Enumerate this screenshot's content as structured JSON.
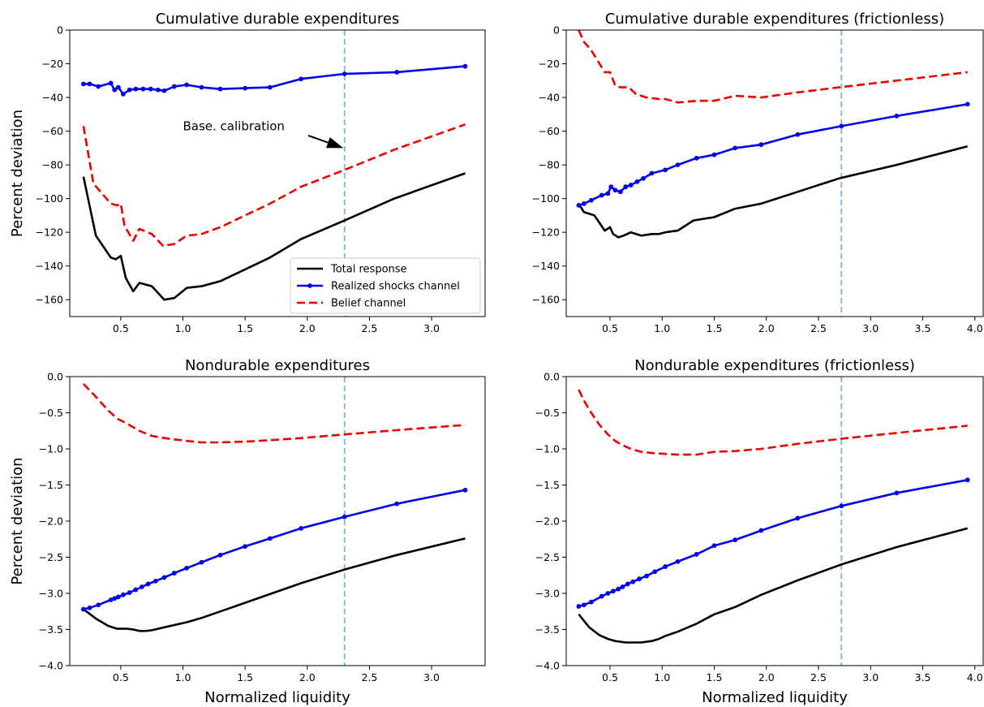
{
  "colors": {
    "total": "#000000",
    "realized": "#0000ee",
    "belief": "#ee0000",
    "calibration": "#8ab8d6"
  },
  "chart_data": [
    {
      "type": "line",
      "title": "Cumulative durable expenditures",
      "xlabel": "",
      "ylabel": "Percent deviation",
      "xlim": [
        0.09,
        3.43
      ],
      "ylim": [
        -170,
        0
      ],
      "xticks": [
        0.5,
        1.0,
        1.5,
        2.0,
        2.5,
        3.0
      ],
      "xtick_labels": [
        "0.5",
        "1.0",
        "1.5",
        "2.0",
        "2.5",
        "3.0"
      ],
      "yticks": [
        0,
        -20,
        -40,
        -60,
        -80,
        -100,
        -120,
        -140,
        -160
      ],
      "ytick_labels": [
        "0",
        "−20",
        "−40",
        "−60",
        "−80",
        "−100",
        "−120",
        "−140",
        "−160"
      ],
      "vline": 2.3,
      "legend": {
        "location": "lower-right",
        "entries": [
          "Total response",
          "Realized shocks channel",
          "Belief channel"
        ]
      },
      "annotation": {
        "text": "Base. calibration",
        "text_x": 1.0,
        "text_y": -57,
        "arrow_to_x": 2.29,
        "arrow_to_y": -70
      },
      "series": [
        {
          "key": "total",
          "style": "solid",
          "markers": false,
          "x": [
            0.2,
            0.3,
            0.42,
            0.46,
            0.5,
            0.54,
            0.6,
            0.65,
            0.75,
            0.85,
            0.93,
            1.03,
            1.15,
            1.3,
            1.5,
            1.7,
            1.95,
            2.3,
            2.7,
            3.27
          ],
          "y": [
            -87,
            -122,
            -135,
            -136,
            -134,
            -147,
            -155,
            -150,
            -152,
            -160,
            -159,
            -153,
            -152,
            -149,
            -142,
            -135,
            -124,
            -113,
            -100,
            -85
          ]
        },
        {
          "key": "realized",
          "style": "solid",
          "markers": true,
          "x": [
            0.2,
            0.25,
            0.32,
            0.42,
            0.45,
            0.48,
            0.52,
            0.57,
            0.62,
            0.68,
            0.74,
            0.8,
            0.85,
            0.93,
            1.03,
            1.15,
            1.3,
            1.5,
            1.7,
            1.95,
            2.3,
            2.72,
            3.27
          ],
          "y": [
            -32,
            -32,
            -33.5,
            -31.5,
            -35.5,
            -34,
            -38,
            -35.5,
            -35,
            -35,
            -35,
            -35.5,
            -36,
            -33.5,
            -32.5,
            -34,
            -35,
            -34.5,
            -34,
            -29,
            -26,
            -25,
            -21.5
          ]
        },
        {
          "key": "belief",
          "style": "dashed",
          "markers": false,
          "x": [
            0.2,
            0.28,
            0.42,
            0.47,
            0.5,
            0.53,
            0.6,
            0.65,
            0.75,
            0.84,
            0.93,
            1.03,
            1.15,
            1.3,
            1.5,
            1.7,
            1.95,
            2.3,
            2.7,
            3.27
          ],
          "y": [
            -57,
            -91,
            -103,
            -104,
            -103,
            -116,
            -125,
            -118,
            -121,
            -128,
            -127,
            -122,
            -121,
            -117,
            -110,
            -103,
            -93,
            -83,
            -71,
            -56
          ]
        }
      ]
    },
    {
      "type": "line",
      "title": "Cumulative durable expenditures (frictionless)",
      "xlabel": "",
      "ylabel": "",
      "xlim": [
        0.08,
        4.08
      ],
      "ylim": [
        -170,
        0
      ],
      "xticks": [
        0.5,
        1.0,
        1.5,
        2.0,
        2.5,
        3.0,
        3.5,
        4.0
      ],
      "xtick_labels": [
        "0.5",
        "1.0",
        "1.5",
        "2.0",
        "2.5",
        "3.0",
        "3.5",
        "4.0"
      ],
      "yticks": [
        0,
        -20,
        -40,
        -60,
        -80,
        -100,
        -120,
        -140,
        -160
      ],
      "ytick_labels": [
        "0",
        "−20",
        "−40",
        "−60",
        "−80",
        "−100",
        "−120",
        "−140",
        "−160"
      ],
      "vline": 2.72,
      "series": [
        {
          "key": "total",
          "style": "solid",
          "markers": false,
          "x": [
            0.2,
            0.25,
            0.35,
            0.45,
            0.5,
            0.53,
            0.58,
            0.63,
            0.7,
            0.8,
            0.9,
            0.97,
            1.03,
            1.15,
            1.3,
            1.5,
            1.7,
            1.95,
            2.3,
            2.7,
            3.25,
            3.93
          ],
          "y": [
            -103,
            -108,
            -110,
            -119,
            -117,
            -121,
            -123,
            -122,
            -120,
            -122,
            -121,
            -121,
            -120,
            -119,
            -113,
            -111,
            -106,
            -103,
            -96,
            -88,
            -80,
            -69
          ]
        },
        {
          "key": "realized",
          "style": "solid",
          "markers": true,
          "x": [
            0.2,
            0.25,
            0.32,
            0.42,
            0.48,
            0.51,
            0.55,
            0.6,
            0.65,
            0.7,
            0.76,
            0.82,
            0.9,
            1.03,
            1.15,
            1.33,
            1.5,
            1.7,
            1.95,
            2.3,
            2.72,
            3.25,
            3.93
          ],
          "y": [
            -104,
            -103,
            -101,
            -98,
            -97,
            -93,
            -95,
            -96,
            -93,
            -92,
            -90,
            -88,
            -85,
            -83,
            -80,
            -76,
            -74,
            -70,
            -68,
            -62,
            -57,
            -51,
            -44
          ]
        },
        {
          "key": "belief",
          "style": "dashed",
          "markers": false,
          "x": [
            0.2,
            0.25,
            0.32,
            0.38,
            0.45,
            0.5,
            0.55,
            0.6,
            0.68,
            0.75,
            0.85,
            0.97,
            1.03,
            1.15,
            1.33,
            1.5,
            1.7,
            1.95,
            2.3,
            2.7,
            3.25,
            3.93
          ],
          "y": [
            0,
            -7,
            -12,
            -18,
            -25,
            -25,
            -33,
            -34,
            -34,
            -38,
            -40,
            -41,
            -41,
            -43,
            -42,
            -42,
            -39,
            -40,
            -37,
            -34,
            -30,
            -25
          ]
        }
      ]
    },
    {
      "type": "line",
      "title": "Nondurable expenditures",
      "xlabel": "Normalized liquidity",
      "ylabel": "Percent deviation",
      "xlim": [
        0.09,
        3.43
      ],
      "ylim": [
        -4.0,
        0.0
      ],
      "xticks": [
        0.5,
        1.0,
        1.5,
        2.0,
        2.5,
        3.0
      ],
      "xtick_labels": [
        "0.5",
        "1.0",
        "1.5",
        "2.0",
        "2.5",
        "3.0"
      ],
      "yticks": [
        0.0,
        -0.5,
        -1.0,
        -1.5,
        -2.0,
        -2.5,
        -3.0,
        -3.5,
        -4.0
      ],
      "ytick_labels": [
        "0.0",
        "−0.5",
        "−1.0",
        "−1.5",
        "−2.0",
        "−2.5",
        "−3.0",
        "−3.5",
        "−4.0"
      ],
      "vline": 2.3,
      "series": [
        {
          "key": "total",
          "style": "solid",
          "markers": false,
          "x": [
            0.2,
            0.3,
            0.4,
            0.47,
            0.55,
            0.6,
            0.65,
            0.7,
            0.75,
            0.85,
            1.03,
            1.15,
            1.3,
            1.5,
            1.7,
            1.95,
            2.3,
            2.72,
            3.27
          ],
          "y": [
            -3.22,
            -3.35,
            -3.45,
            -3.49,
            -3.49,
            -3.5,
            -3.52,
            -3.52,
            -3.51,
            -3.47,
            -3.4,
            -3.34,
            -3.25,
            -3.13,
            -3.01,
            -2.86,
            -2.67,
            -2.47,
            -2.24
          ]
        },
        {
          "key": "realized",
          "style": "solid",
          "markers": true,
          "x": [
            0.2,
            0.25,
            0.32,
            0.42,
            0.45,
            0.48,
            0.52,
            0.57,
            0.62,
            0.67,
            0.72,
            0.78,
            0.85,
            0.93,
            1.03,
            1.15,
            1.3,
            1.5,
            1.7,
            1.95,
            2.3,
            2.72,
            3.27
          ],
          "y": [
            -3.22,
            -3.2,
            -3.16,
            -3.09,
            -3.07,
            -3.05,
            -3.02,
            -2.99,
            -2.95,
            -2.91,
            -2.87,
            -2.83,
            -2.78,
            -2.72,
            -2.65,
            -2.57,
            -2.47,
            -2.35,
            -2.24,
            -2.1,
            -1.94,
            -1.76,
            -1.57
          ]
        },
        {
          "key": "belief",
          "style": "dashed",
          "markers": false,
          "x": [
            0.2,
            0.3,
            0.4,
            0.47,
            0.55,
            0.65,
            0.75,
            0.85,
            1.03,
            1.15,
            1.3,
            1.5,
            1.7,
            1.95,
            2.3,
            2.72,
            3.27
          ],
          "y": [
            -0.1,
            -0.28,
            -0.47,
            -0.58,
            -0.65,
            -0.75,
            -0.82,
            -0.85,
            -0.89,
            -0.91,
            -0.91,
            -0.9,
            -0.88,
            -0.85,
            -0.8,
            -0.74,
            -0.67
          ]
        }
      ]
    },
    {
      "type": "line",
      "title": "Nondurable expenditures (frictionless)",
      "xlabel": "Normalized liquidity",
      "ylabel": "",
      "xlim": [
        0.08,
        4.08
      ],
      "ylim": [
        -4.0,
        0.0
      ],
      "xticks": [
        0.5,
        1.0,
        1.5,
        2.0,
        2.5,
        3.0,
        3.5,
        4.0
      ],
      "xtick_labels": [
        "0.5",
        "1.0",
        "1.5",
        "2.0",
        "2.5",
        "3.0",
        "3.5",
        "4.0"
      ],
      "yticks": [
        0.0,
        -0.5,
        -1.0,
        -1.5,
        -2.0,
        -2.5,
        -3.0,
        -3.5,
        -4.0
      ],
      "ytick_labels": [
        "0.0",
        "−0.5",
        "−1.0",
        "−1.5",
        "−2.0",
        "−2.5",
        "−3.0",
        "−3.5",
        "−4.0"
      ],
      "vline": 2.72,
      "series": [
        {
          "key": "total",
          "style": "solid",
          "markers": false,
          "x": [
            0.2,
            0.3,
            0.4,
            0.48,
            0.55,
            0.6,
            0.65,
            0.7,
            0.75,
            0.8,
            0.9,
            0.97,
            1.03,
            1.15,
            1.33,
            1.5,
            1.7,
            1.95,
            2.3,
            2.72,
            3.25,
            3.93
          ],
          "y": [
            -3.29,
            -3.47,
            -3.58,
            -3.63,
            -3.66,
            -3.67,
            -3.68,
            -3.68,
            -3.68,
            -3.68,
            -3.66,
            -3.63,
            -3.59,
            -3.53,
            -3.42,
            -3.29,
            -3.19,
            -3.02,
            -2.82,
            -2.6,
            -2.36,
            -2.1
          ]
        },
        {
          "key": "realized",
          "style": "solid",
          "markers": true,
          "x": [
            0.2,
            0.25,
            0.32,
            0.42,
            0.48,
            0.53,
            0.58,
            0.62,
            0.67,
            0.72,
            0.78,
            0.85,
            0.93,
            1.03,
            1.15,
            1.33,
            1.5,
            1.7,
            1.95,
            2.3,
            2.72,
            3.25,
            3.93
          ],
          "y": [
            -3.18,
            -3.16,
            -3.12,
            -3.04,
            -3.0,
            -2.97,
            -2.94,
            -2.91,
            -2.87,
            -2.84,
            -2.8,
            -2.76,
            -2.7,
            -2.63,
            -2.56,
            -2.46,
            -2.34,
            -2.26,
            -2.13,
            -1.96,
            -1.79,
            -1.61,
            -1.43
          ]
        },
        {
          "key": "belief",
          "style": "dashed",
          "markers": false,
          "x": [
            0.2,
            0.25,
            0.32,
            0.4,
            0.48,
            0.55,
            0.62,
            0.7,
            0.8,
            0.92,
            1.03,
            1.15,
            1.33,
            1.5,
            1.7,
            1.95,
            2.3,
            2.72,
            3.25,
            3.93
          ],
          "y": [
            -0.18,
            -0.33,
            -0.5,
            -0.67,
            -0.8,
            -0.89,
            -0.95,
            -1.0,
            -1.04,
            -1.06,
            -1.07,
            -1.08,
            -1.08,
            -1.04,
            -1.03,
            -1.0,
            -0.93,
            -0.86,
            -0.78,
            -0.68
          ]
        }
      ]
    }
  ]
}
